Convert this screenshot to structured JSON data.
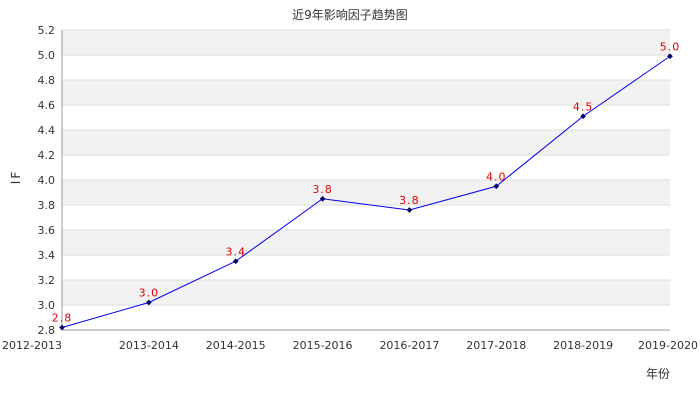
{
  "chart_data": {
    "type": "line",
    "title": "近9年影响因子趋势图",
    "xlabel": "年份",
    "ylabel": "IF",
    "ylim": [
      2.8,
      5.2
    ],
    "yticks": [
      "2.8",
      "3.0",
      "3.2",
      "3.4",
      "3.6",
      "3.8",
      "4.0",
      "4.2",
      "4.4",
      "4.6",
      "4.8",
      "5.0",
      "5.2"
    ],
    "categories": [
      "2012-2013",
      "2013-2014",
      "2014-2015",
      "2015-2016",
      "2016-2017",
      "2017-2018",
      "2018-2019",
      "2019-2020"
    ],
    "series": [
      {
        "values": [
          2.82,
          3.02,
          3.35,
          3.85,
          3.76,
          3.95,
          4.51,
          4.99
        ],
        "labels": [
          "2.8",
          "3.0",
          "3.4",
          "3.8",
          "3.8",
          "4.0",
          "4.5",
          "5.0"
        ]
      }
    ],
    "grid": true,
    "colors": {
      "line": "#0000ee",
      "marker": "#000066",
      "data_label": "#dd0000",
      "band_light": "#f2f2f2",
      "band_white": "#ffffff",
      "gridline": "#dddddd",
      "axis": "#999999",
      "text": "#333333"
    }
  }
}
